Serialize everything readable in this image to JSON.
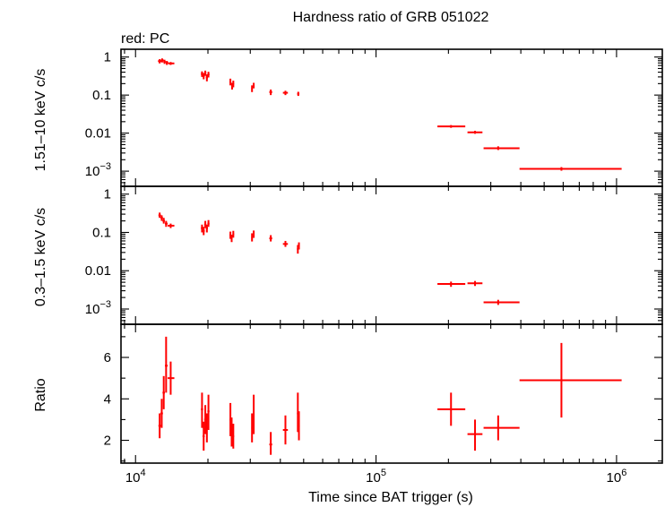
{
  "chart_data": {
    "title": "Hardness ratio of GRB 051022",
    "legend_text": "red: PC",
    "xlabel": "Time since BAT trigger (s)",
    "x_scale": "log",
    "xlim": [
      8700,
      1550000
    ],
    "x_tick_labels": [
      {
        "value": 10000,
        "base": "10",
        "exp": "4"
      },
      {
        "value": 100000,
        "base": "10",
        "exp": "5"
      },
      {
        "value": 1000000,
        "base": "10",
        "exp": "6"
      }
    ],
    "series_color": "#ff0000",
    "panels": [
      {
        "type": "scatter",
        "ylabel": "1.51–10 keV c/s",
        "y_scale": "log",
        "ylim": [
          0.0004,
          1.6
        ],
        "y_tick_labels": [
          {
            "value": 1,
            "text": "1"
          },
          {
            "value": 0.1,
            "text": "0.1"
          },
          {
            "value": 0.01,
            "text": "0.01"
          },
          {
            "value": 0.001,
            "base": "10",
            "exp": "−3"
          }
        ],
        "points": [
          {
            "x": 12600,
            "xlo": 12400,
            "xhi": 12800,
            "y": 0.78,
            "ylo": 0.68,
            "yhi": 0.88
          },
          {
            "x": 12900,
            "xlo": 12750,
            "xhi": 13100,
            "y": 0.82,
            "ylo": 0.72,
            "yhi": 0.92
          },
          {
            "x": 13200,
            "xlo": 13050,
            "xhi": 13350,
            "y": 0.75,
            "ylo": 0.66,
            "yhi": 0.85
          },
          {
            "x": 13500,
            "xlo": 13350,
            "xhi": 13700,
            "y": 0.7,
            "ylo": 0.62,
            "yhi": 0.79
          },
          {
            "x": 14000,
            "xlo": 13700,
            "xhi": 14500,
            "y": 0.68,
            "ylo": 0.62,
            "yhi": 0.74
          },
          {
            "x": 18900,
            "xlo": 18700,
            "xhi": 19100,
            "y": 0.36,
            "ylo": 0.3,
            "yhi": 0.42
          },
          {
            "x": 19200,
            "xlo": 19000,
            "xhi": 19400,
            "y": 0.32,
            "ylo": 0.26,
            "yhi": 0.38
          },
          {
            "x": 19500,
            "xlo": 19300,
            "xhi": 19700,
            "y": 0.38,
            "ylo": 0.32,
            "yhi": 0.44
          },
          {
            "x": 19800,
            "xlo": 19600,
            "xhi": 20000,
            "y": 0.29,
            "ylo": 0.23,
            "yhi": 0.35
          },
          {
            "x": 20100,
            "xlo": 19900,
            "xhi": 20300,
            "y": 0.35,
            "ylo": 0.29,
            "yhi": 0.41
          },
          {
            "x": 24800,
            "xlo": 24600,
            "xhi": 25000,
            "y": 0.22,
            "ylo": 0.18,
            "yhi": 0.27
          },
          {
            "x": 25200,
            "xlo": 25000,
            "xhi": 25400,
            "y": 0.17,
            "ylo": 0.14,
            "yhi": 0.21
          },
          {
            "x": 25500,
            "xlo": 25300,
            "xhi": 25700,
            "y": 0.2,
            "ylo": 0.16,
            "yhi": 0.24
          },
          {
            "x": 30500,
            "xlo": 30300,
            "xhi": 30700,
            "y": 0.15,
            "ylo": 0.12,
            "yhi": 0.18
          },
          {
            "x": 31000,
            "xlo": 30800,
            "xhi": 31200,
            "y": 0.18,
            "ylo": 0.15,
            "yhi": 0.21
          },
          {
            "x": 36500,
            "xlo": 36000,
            "xhi": 37000,
            "y": 0.12,
            "ylo": 0.1,
            "yhi": 0.14
          },
          {
            "x": 42000,
            "xlo": 41000,
            "xhi": 43000,
            "y": 0.115,
            "ylo": 0.1,
            "yhi": 0.13
          },
          {
            "x": 47500,
            "xlo": 47000,
            "xhi": 48000,
            "y": 0.108,
            "ylo": 0.095,
            "yhi": 0.122
          },
          {
            "x": 205000,
            "xlo": 180000,
            "xhi": 235000,
            "y": 0.015,
            "ylo": 0.0138,
            "yhi": 0.0163
          },
          {
            "x": 258000,
            "xlo": 240000,
            "xhi": 277000,
            "y": 0.0105,
            "ylo": 0.0096,
            "yhi": 0.0115
          },
          {
            "x": 322000,
            "xlo": 280000,
            "xhi": 395000,
            "y": 0.004,
            "ylo": 0.0036,
            "yhi": 0.0045
          },
          {
            "x": 590000,
            "xlo": 395000,
            "xhi": 1050000,
            "y": 0.00115,
            "ylo": 0.00103,
            "yhi": 0.00128
          }
        ]
      },
      {
        "type": "scatter",
        "ylabel": "0.3–1.5 keV c/s",
        "y_scale": "log",
        "ylim": [
          0.0004,
          1.6
        ],
        "y_tick_labels": [
          {
            "value": 1,
            "text": "1"
          },
          {
            "value": 0.1,
            "text": "0.1"
          },
          {
            "value": 0.01,
            "text": "0.01"
          },
          {
            "value": 0.001,
            "base": "10",
            "exp": "−3"
          }
        ],
        "points": [
          {
            "x": 12600,
            "xlo": 12450,
            "xhi": 12750,
            "y": 0.28,
            "ylo": 0.24,
            "yhi": 0.33
          },
          {
            "x": 12850,
            "xlo": 12700,
            "xhi": 13000,
            "y": 0.24,
            "ylo": 0.2,
            "yhi": 0.28
          },
          {
            "x": 13100,
            "xlo": 12950,
            "xhi": 13250,
            "y": 0.2,
            "ylo": 0.17,
            "yhi": 0.24
          },
          {
            "x": 13400,
            "xlo": 13250,
            "xhi": 13600,
            "y": 0.17,
            "ylo": 0.14,
            "yhi": 0.2
          },
          {
            "x": 14000,
            "xlo": 13600,
            "xhi": 14500,
            "y": 0.15,
            "ylo": 0.13,
            "yhi": 0.17
          },
          {
            "x": 18900,
            "xlo": 18700,
            "xhi": 19100,
            "y": 0.13,
            "ylo": 0.1,
            "yhi": 0.16
          },
          {
            "x": 19200,
            "xlo": 19000,
            "xhi": 19400,
            "y": 0.11,
            "ylo": 0.085,
            "yhi": 0.14
          },
          {
            "x": 19500,
            "xlo": 19300,
            "xhi": 19700,
            "y": 0.16,
            "ylo": 0.13,
            "yhi": 0.2
          },
          {
            "x": 19800,
            "xlo": 19600,
            "xhi": 20000,
            "y": 0.13,
            "ylo": 0.1,
            "yhi": 0.16
          },
          {
            "x": 20100,
            "xlo": 19900,
            "xhi": 20300,
            "y": 0.17,
            "ylo": 0.14,
            "yhi": 0.21
          },
          {
            "x": 24800,
            "xlo": 24600,
            "xhi": 25000,
            "y": 0.085,
            "ylo": 0.068,
            "yhi": 0.105
          },
          {
            "x": 25100,
            "xlo": 24900,
            "xhi": 25300,
            "y": 0.07,
            "ylo": 0.056,
            "yhi": 0.087
          },
          {
            "x": 25500,
            "xlo": 25300,
            "xhi": 25700,
            "y": 0.09,
            "ylo": 0.073,
            "yhi": 0.11
          },
          {
            "x": 30500,
            "xlo": 30300,
            "xhi": 30700,
            "y": 0.075,
            "ylo": 0.058,
            "yhi": 0.095
          },
          {
            "x": 31000,
            "xlo": 30800,
            "xhi": 31200,
            "y": 0.09,
            "ylo": 0.072,
            "yhi": 0.112
          },
          {
            "x": 36500,
            "xlo": 36000,
            "xhi": 37000,
            "y": 0.07,
            "ylo": 0.058,
            "yhi": 0.085
          },
          {
            "x": 42000,
            "xlo": 41000,
            "xhi": 43000,
            "y": 0.05,
            "ylo": 0.042,
            "yhi": 0.06
          },
          {
            "x": 47300,
            "xlo": 46900,
            "xhi": 47700,
            "y": 0.037,
            "ylo": 0.028,
            "yhi": 0.047
          },
          {
            "x": 47800,
            "xlo": 47400,
            "xhi": 48200,
            "y": 0.045,
            "ylo": 0.036,
            "yhi": 0.055
          },
          {
            "x": 205000,
            "xlo": 180000,
            "xhi": 235000,
            "y": 0.0045,
            "ylo": 0.0038,
            "yhi": 0.0052
          },
          {
            "x": 258000,
            "xlo": 240000,
            "xhi": 277000,
            "y": 0.0047,
            "ylo": 0.004,
            "yhi": 0.0054
          },
          {
            "x": 322000,
            "xlo": 280000,
            "xhi": 395000,
            "y": 0.0015,
            "ylo": 0.00128,
            "yhi": 0.00174
          }
        ]
      },
      {
        "type": "scatter",
        "ylabel": "Ratio",
        "y_scale": "linear",
        "ylim": [
          0.9,
          7.6
        ],
        "y_tick_labels": [
          {
            "value": 2,
            "text": "2"
          },
          {
            "value": 4,
            "text": "4"
          },
          {
            "value": 6,
            "text": "6"
          }
        ],
        "points": [
          {
            "x": 12600,
            "xlo": 12450,
            "xhi": 12750,
            "y": 2.7,
            "ylo": 2.1,
            "yhi": 3.3
          },
          {
            "x": 12850,
            "xlo": 12700,
            "xhi": 13000,
            "y": 3.3,
            "ylo": 2.6,
            "yhi": 4.0
          },
          {
            "x": 13100,
            "xlo": 12950,
            "xhi": 13250,
            "y": 4.3,
            "ylo": 3.5,
            "yhi": 5.1
          },
          {
            "x": 13400,
            "xlo": 13250,
            "xhi": 13600,
            "y": 5.6,
            "ylo": 4.3,
            "yhi": 7.0
          },
          {
            "x": 14000,
            "xlo": 13600,
            "xhi": 14500,
            "y": 5.0,
            "ylo": 4.2,
            "yhi": 5.8
          },
          {
            "x": 18900,
            "xlo": 18700,
            "xhi": 19100,
            "y": 3.5,
            "ylo": 2.6,
            "yhi": 4.3
          },
          {
            "x": 19200,
            "xlo": 19000,
            "xhi": 19400,
            "y": 2.2,
            "ylo": 1.5,
            "yhi": 2.9
          },
          {
            "x": 19500,
            "xlo": 19300,
            "xhi": 19700,
            "y": 3.0,
            "ylo": 2.3,
            "yhi": 3.7
          },
          {
            "x": 19800,
            "xlo": 19600,
            "xhi": 20000,
            "y": 2.6,
            "ylo": 1.9,
            "yhi": 3.3
          },
          {
            "x": 20100,
            "xlo": 19900,
            "xhi": 20300,
            "y": 3.4,
            "ylo": 2.5,
            "yhi": 4.2
          },
          {
            "x": 24800,
            "xlo": 24600,
            "xhi": 25000,
            "y": 3.0,
            "ylo": 2.2,
            "yhi": 3.8
          },
          {
            "x": 25100,
            "xlo": 24900,
            "xhi": 25300,
            "y": 2.4,
            "ylo": 1.7,
            "yhi": 3.1
          },
          {
            "x": 25500,
            "xlo": 25300,
            "xhi": 25700,
            "y": 2.2,
            "ylo": 1.6,
            "yhi": 2.8
          },
          {
            "x": 30500,
            "xlo": 30300,
            "xhi": 30700,
            "y": 2.6,
            "ylo": 1.9,
            "yhi": 3.3
          },
          {
            "x": 31000,
            "xlo": 30800,
            "xhi": 31200,
            "y": 3.2,
            "ylo": 2.3,
            "yhi": 4.2
          },
          {
            "x": 36500,
            "xlo": 36000,
            "xhi": 37000,
            "y": 1.8,
            "ylo": 1.3,
            "yhi": 2.4
          },
          {
            "x": 42000,
            "xlo": 41000,
            "xhi": 43000,
            "y": 2.5,
            "ylo": 1.8,
            "yhi": 3.2
          },
          {
            "x": 47300,
            "xlo": 46900,
            "xhi": 47700,
            "y": 3.3,
            "ylo": 2.4,
            "yhi": 4.3
          },
          {
            "x": 47800,
            "xlo": 47400,
            "xhi": 48200,
            "y": 2.7,
            "ylo": 2.0,
            "yhi": 3.4
          },
          {
            "x": 205000,
            "xlo": 180000,
            "xhi": 235000,
            "y": 3.5,
            "ylo": 2.7,
            "yhi": 4.3
          },
          {
            "x": 258000,
            "xlo": 240000,
            "xhi": 277000,
            "y": 2.3,
            "ylo": 1.5,
            "yhi": 3.0
          },
          {
            "x": 322000,
            "xlo": 280000,
            "xhi": 395000,
            "y": 2.6,
            "ylo": 2.0,
            "yhi": 3.2
          },
          {
            "x": 590000,
            "xlo": 395000,
            "xhi": 1050000,
            "y": 4.9,
            "ylo": 3.1,
            "yhi": 6.7
          }
        ]
      }
    ]
  }
}
